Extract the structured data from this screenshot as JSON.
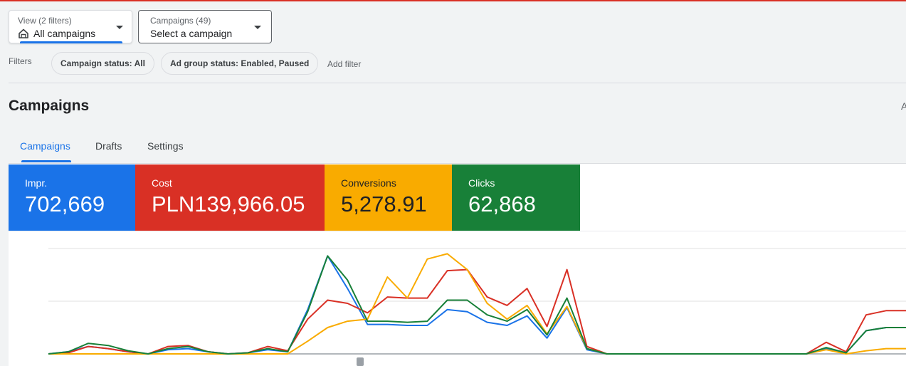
{
  "colors": {
    "impr": "#1a73e8",
    "cost": "#d93025",
    "conversions": "#f9ab00",
    "clicks": "#188038",
    "accent": "#1a73e8"
  },
  "view_dropdown": {
    "label": "View (2 filters)",
    "value": "All campaigns",
    "icon": "home-icon"
  },
  "campaign_dropdown": {
    "label": "Campaigns (49)",
    "value": "Select a campaign"
  },
  "filters": {
    "label": "Filters",
    "chips": [
      "Campaign status: All",
      "Ad group status: Enabled, Paused"
    ],
    "add_label": "Add filter"
  },
  "page": {
    "title": "Campaigns",
    "right_cut_text": "A"
  },
  "tabs": [
    {
      "label": "Campaigns",
      "active": true
    },
    {
      "label": "Drafts",
      "active": false
    },
    {
      "label": "Settings",
      "active": false
    }
  ],
  "metrics": [
    {
      "name": "Impr.",
      "value": "702,669"
    },
    {
      "name": "Cost",
      "value": "PLN139,966.05"
    },
    {
      "name": "Conversions",
      "value": "5,278.91"
    },
    {
      "name": "Clicks",
      "value": "62,868"
    }
  ],
  "chart_data": {
    "type": "line",
    "grid": true,
    "ylim": [
      0,
      1
    ],
    "x": [
      0,
      1,
      2,
      3,
      4,
      5,
      6,
      7,
      8,
      9,
      10,
      11,
      12,
      13,
      14,
      15,
      16,
      17,
      18,
      19,
      20,
      21,
      22,
      23,
      24,
      25,
      26,
      27,
      28,
      29,
      30,
      31,
      32,
      33,
      34,
      35,
      36,
      37,
      38,
      39,
      40,
      41,
      42,
      43
    ],
    "series": [
      {
        "color_key": "impr",
        "values": [
          0,
          0.02,
          0.07,
          0.05,
          0.02,
          0,
          0.04,
          0.05,
          0.02,
          0,
          0.01,
          0.04,
          0.02,
          0.42,
          0.93,
          0.62,
          0.28,
          0.28,
          0.27,
          0.27,
          0.42,
          0.4,
          0.3,
          0.27,
          0.36,
          0.15,
          0.44,
          0.04,
          0,
          0,
          0,
          0,
          0,
          0,
          0,
          0,
          0,
          0,
          0,
          0.05,
          0.01,
          0.22,
          0.25,
          0.25
        ]
      },
      {
        "color_key": "cost",
        "values": [
          0,
          0.01,
          0.07,
          0.05,
          0.02,
          0,
          0.07,
          0.08,
          0.02,
          0,
          0.01,
          0.07,
          0.03,
          0.33,
          0.51,
          0.48,
          0.39,
          0.54,
          0.53,
          0.53,
          0.79,
          0.8,
          0.54,
          0.46,
          0.62,
          0.26,
          0.8,
          0.07,
          0,
          0,
          0,
          0,
          0,
          0,
          0,
          0,
          0,
          0,
          0,
          0.11,
          0.02,
          0.37,
          0.41,
          0.41
        ]
      },
      {
        "color_key": "conversions",
        "values": [
          0,
          0,
          0,
          0,
          0,
          0,
          0,
          0,
          0,
          0,
          0,
          0,
          0,
          0.12,
          0.25,
          0.31,
          0.33,
          0.73,
          0.53,
          0.9,
          0.95,
          0.8,
          0.48,
          0.33,
          0.46,
          0.19,
          0.45,
          0.05,
          0,
          0,
          0,
          0,
          0,
          0,
          0,
          0,
          0,
          0,
          0,
          0.04,
          0,
          0.03,
          0.05,
          0.05
        ]
      },
      {
        "color_key": "clicks",
        "values": [
          0,
          0.02,
          0.1,
          0.08,
          0.03,
          0,
          0.05,
          0.07,
          0.02,
          0,
          0.01,
          0.05,
          0.02,
          0.4,
          0.93,
          0.7,
          0.31,
          0.31,
          0.3,
          0.31,
          0.51,
          0.51,
          0.37,
          0.31,
          0.42,
          0.18,
          0.53,
          0.05,
          0,
          0,
          0,
          0,
          0,
          0,
          0,
          0,
          0,
          0,
          0,
          0.06,
          0.01,
          0.22,
          0.25,
          0.25
        ]
      }
    ]
  }
}
